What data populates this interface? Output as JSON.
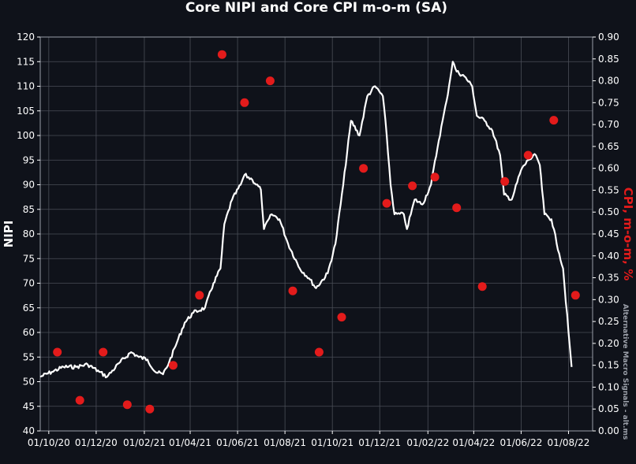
{
  "chart_data": {
    "type": "line",
    "title": "Core NIPI and Core CPI m-o-m (SA)",
    "ylabel_left": "NIPI",
    "ylabel_right": "CPI, m-o-m, %",
    "watermark": "Alternative Macro Signals - alt.ms",
    "ylim_left": [
      40,
      120
    ],
    "ylim_right": [
      0.0,
      0.9
    ],
    "yticks_left": [
      "40",
      "45",
      "50",
      "55",
      "60",
      "65",
      "70",
      "75",
      "80",
      "85",
      "90",
      "95",
      "100",
      "105",
      "110",
      "115",
      "120"
    ],
    "yticks_right": [
      "0.00",
      "0.05",
      "0.10",
      "0.15",
      "0.20",
      "0.25",
      "0.30",
      "0.35",
      "0.40",
      "0.45",
      "0.50",
      "0.55",
      "0.60",
      "0.65",
      "0.70",
      "0.75",
      "0.80",
      "0.85",
      "0.90"
    ],
    "xlim": [
      "2020-09-20",
      "2022-09-01"
    ],
    "xticks": [
      {
        "date": "2020-10-01",
        "label": "01/10/20"
      },
      {
        "date": "2020-12-01",
        "label": "01/12/20"
      },
      {
        "date": "2021-02-01",
        "label": "01/02/21"
      },
      {
        "date": "2021-04-01",
        "label": "01/04/21"
      },
      {
        "date": "2021-06-01",
        "label": "01/06/21"
      },
      {
        "date": "2021-08-01",
        "label": "01/08/21"
      },
      {
        "date": "2021-10-01",
        "label": "01/10/21"
      },
      {
        "date": "2021-12-01",
        "label": "01/12/21"
      },
      {
        "date": "2022-02-01",
        "label": "01/02/22"
      },
      {
        "date": "2022-04-01",
        "label": "01/04/22"
      },
      {
        "date": "2022-06-01",
        "label": "01/06/22"
      },
      {
        "date": "2022-08-01",
        "label": "01/08/22"
      }
    ],
    "grid": true,
    "colors": {
      "background": "#0f121a",
      "line": "#ffffff",
      "dots": "#e31b1b",
      "grid": "#4a4e57"
    },
    "series": [
      {
        "axis": "left",
        "style": "line",
        "points": [
          [
            "2020-09-20",
            51
          ],
          [
            "2020-10-05",
            52
          ],
          [
            "2020-10-20",
            53
          ],
          [
            "2020-11-05",
            53
          ],
          [
            "2020-11-20",
            53.5
          ],
          [
            "2020-12-05",
            52
          ],
          [
            "2020-12-15",
            51
          ],
          [
            "2021-01-01",
            54
          ],
          [
            "2021-01-15",
            56
          ],
          [
            "2021-01-25",
            55
          ],
          [
            "2021-02-05",
            54.5
          ],
          [
            "2021-02-15",
            52
          ],
          [
            "2021-02-25",
            51.5
          ],
          [
            "2021-03-05",
            54
          ],
          [
            "2021-03-15",
            58
          ],
          [
            "2021-03-25",
            62
          ],
          [
            "2021-04-05",
            64
          ],
          [
            "2021-04-20",
            65
          ],
          [
            "2021-05-01",
            70
          ],
          [
            "2021-05-10",
            73
          ],
          [
            "2021-05-15",
            82
          ],
          [
            "2021-05-25",
            87
          ],
          [
            "2021-06-05",
            90
          ],
          [
            "2021-06-10",
            92
          ],
          [
            "2021-06-20",
            91
          ],
          [
            "2021-07-01",
            89
          ],
          [
            "2021-07-05",
            81
          ],
          [
            "2021-07-15",
            84
          ],
          [
            "2021-07-25",
            83
          ],
          [
            "2021-08-05",
            78
          ],
          [
            "2021-08-20",
            73
          ],
          [
            "2021-09-01",
            71
          ],
          [
            "2021-09-10",
            69
          ],
          [
            "2021-09-25",
            72
          ],
          [
            "2021-10-05",
            78
          ],
          [
            "2021-10-15",
            90
          ],
          [
            "2021-10-25",
            103
          ],
          [
            "2021-11-05",
            100
          ],
          [
            "2021-11-15",
            108
          ],
          [
            "2021-11-25",
            110
          ],
          [
            "2021-12-05",
            108
          ],
          [
            "2021-12-10",
            100
          ],
          [
            "2021-12-15",
            90
          ],
          [
            "2021-12-20",
            84
          ],
          [
            "2022-01-01",
            84
          ],
          [
            "2022-01-05",
            81
          ],
          [
            "2022-01-15",
            87
          ],
          [
            "2022-01-25",
            86
          ],
          [
            "2022-02-05",
            90
          ],
          [
            "2022-02-15",
            99
          ],
          [
            "2022-02-25",
            107
          ],
          [
            "2022-03-05",
            115
          ],
          [
            "2022-03-10",
            113
          ],
          [
            "2022-03-20",
            112
          ],
          [
            "2022-03-30",
            110
          ],
          [
            "2022-04-05",
            104
          ],
          [
            "2022-04-15",
            103
          ],
          [
            "2022-04-25",
            101
          ],
          [
            "2022-05-05",
            96
          ],
          [
            "2022-05-10",
            88
          ],
          [
            "2022-05-20",
            87
          ],
          [
            "2022-06-01",
            93
          ],
          [
            "2022-06-10",
            95
          ],
          [
            "2022-06-20",
            96
          ],
          [
            "2022-06-25",
            94
          ],
          [
            "2022-07-01",
            84
          ],
          [
            "2022-07-10",
            83
          ],
          [
            "2022-07-20",
            76
          ],
          [
            "2022-07-25",
            73
          ],
          [
            "2022-08-01",
            60
          ],
          [
            "2022-08-05",
            53
          ]
        ]
      },
      {
        "axis": "right",
        "style": "scatter",
        "points": [
          [
            "2020-10-12",
            0.18
          ],
          [
            "2020-11-10",
            0.07
          ],
          [
            "2020-12-10",
            0.18
          ],
          [
            "2021-01-10",
            0.06
          ],
          [
            "2021-02-08",
            0.05
          ],
          [
            "2021-03-10",
            0.15
          ],
          [
            "2021-04-13",
            0.31
          ],
          [
            "2021-05-12",
            0.86
          ],
          [
            "2021-06-10",
            0.75
          ],
          [
            "2021-07-13",
            0.8
          ],
          [
            "2021-08-11",
            0.32
          ],
          [
            "2021-09-14",
            0.18
          ],
          [
            "2021-10-13",
            0.26
          ],
          [
            "2021-11-10",
            0.6
          ],
          [
            "2021-12-10",
            0.52
          ],
          [
            "2022-01-12",
            0.56
          ],
          [
            "2022-02-10",
            0.58
          ],
          [
            "2022-03-10",
            0.51
          ],
          [
            "2022-04-12",
            0.33
          ],
          [
            "2022-05-11",
            0.57
          ],
          [
            "2022-06-10",
            0.63
          ],
          [
            "2022-07-13",
            0.71
          ],
          [
            "2022-08-10",
            0.31
          ]
        ]
      }
    ]
  }
}
